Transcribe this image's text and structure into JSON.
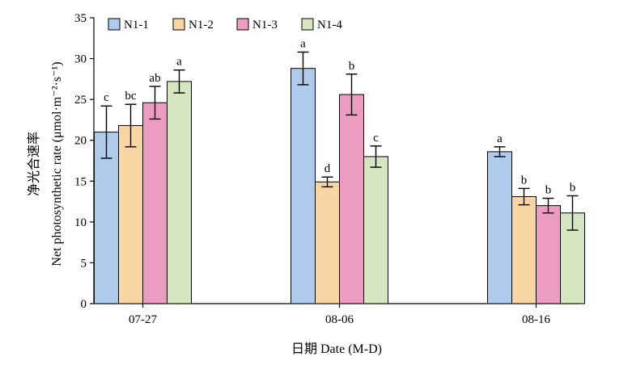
{
  "chart_data": {
    "type": "bar",
    "categories": [
      "07-27",
      "08-06",
      "08-16"
    ],
    "series": [
      {
        "name": "N1-1",
        "color": "#aecbeb",
        "values": [
          21.0,
          28.8,
          18.6
        ],
        "errors": [
          3.2,
          2.0,
          0.6
        ],
        "letters": [
          "c",
          "a",
          "a"
        ]
      },
      {
        "name": "N1-2",
        "color": "#f8d6a4",
        "values": [
          21.8,
          14.9,
          13.1
        ],
        "errors": [
          2.6,
          0.6,
          1.0
        ],
        "letters": [
          "bc",
          "d",
          "b"
        ]
      },
      {
        "name": "N1-3",
        "color": "#ec9cc0",
        "values": [
          24.6,
          25.6,
          12.0
        ],
        "errors": [
          2.0,
          2.5,
          0.9
        ],
        "letters": [
          "ab",
          "b",
          "b"
        ]
      },
      {
        "name": "N1-4",
        "color": "#d5e6c1",
        "values": [
          27.2,
          18.0,
          11.1
        ],
        "errors": [
          1.4,
          1.3,
          2.1
        ],
        "letters": [
          "a",
          "c",
          "b"
        ]
      }
    ],
    "ylim": [
      0,
      35
    ],
    "yticks": [
      0,
      5,
      10,
      15,
      20,
      25,
      30,
      35
    ],
    "ylabel_cn": "净光合速率",
    "ylabel_en": "Net photosynthetic rate (μmol·m⁻²·s⁻¹)",
    "xlabel": "日期 Date (M-D)",
    "legend_position": "top-left",
    "grid": false
  }
}
